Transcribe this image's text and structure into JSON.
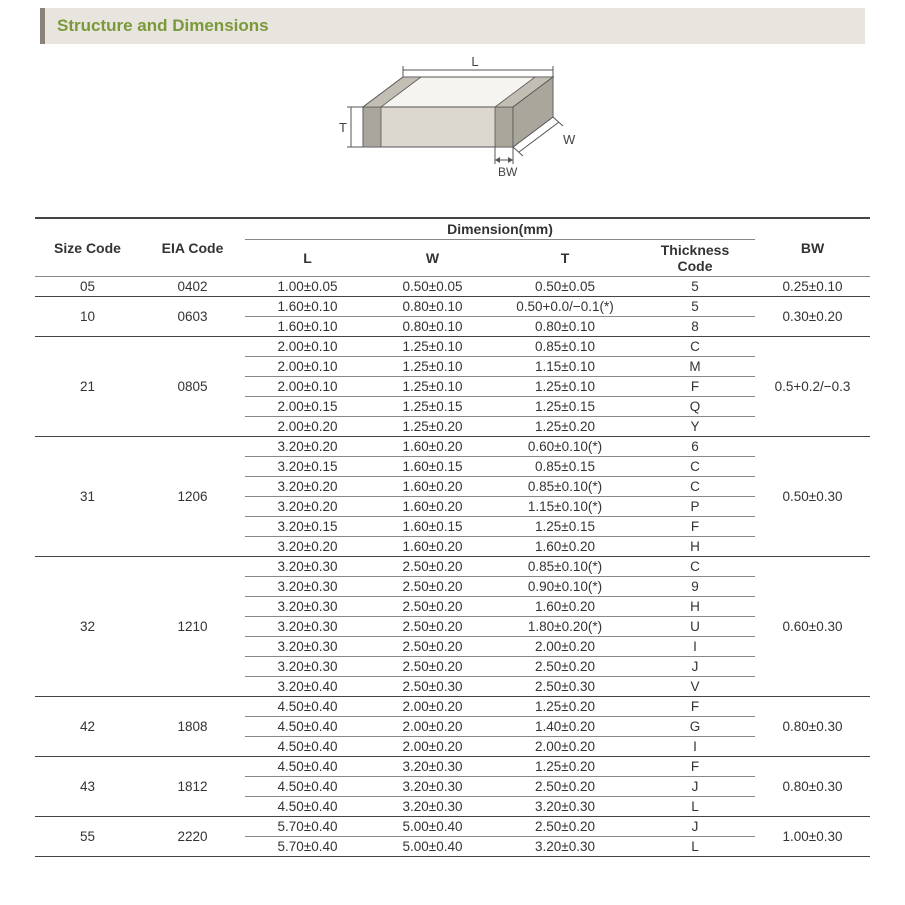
{
  "title": "Structure and Dimensions",
  "diagram": {
    "labels": {
      "L": "L",
      "W": "W",
      "T": "T",
      "BW": "BW"
    },
    "stroke": "#555555",
    "fill_top": "#f6f4f0",
    "fill_side": "#dcd8d0",
    "fill_end": "#c2beb4",
    "fill_end_dark": "#aaa69c"
  },
  "table": {
    "header": {
      "size": "Size Code",
      "eia": "EIA Code",
      "dim": "Dimension(mm)",
      "L": "L",
      "W": "W",
      "T": "T",
      "thk": "Thickness  Code",
      "bw": "BW"
    },
    "groups": [
      {
        "size": "05",
        "eia": "0402",
        "bw": "0.25±0.10",
        "rows": [
          {
            "L": "1.00±0.05",
            "W": "0.50±0.05",
            "T": "0.50±0.05",
            "thk": "5"
          }
        ]
      },
      {
        "size": "10",
        "eia": "0603",
        "bw": "0.30±0.20",
        "rows": [
          {
            "L": "1.60±0.10",
            "W": "0.80±0.10",
            "T": "0.50+0.0/−0.1(*)",
            "thk": "5"
          },
          {
            "L": "1.60±0.10",
            "W": "0.80±0.10",
            "T": "0.80±0.10",
            "thk": "8"
          }
        ]
      },
      {
        "size": "21",
        "eia": "0805",
        "bw": "0.5+0.2/−0.3",
        "rows": [
          {
            "L": "2.00±0.10",
            "W": "1.25±0.10",
            "T": "0.85±0.10",
            "thk": "C"
          },
          {
            "L": "2.00±0.10",
            "W": "1.25±0.10",
            "T": "1.15±0.10",
            "thk": "M"
          },
          {
            "L": "2.00±0.10",
            "W": "1.25±0.10",
            "T": "1.25±0.10",
            "thk": "F"
          },
          {
            "L": "2.00±0.15",
            "W": "1.25±0.15",
            "T": "1.25±0.15",
            "thk": "Q"
          },
          {
            "L": "2.00±0.20",
            "W": "1.25±0.20",
            "T": "1.25±0.20",
            "thk": "Y"
          }
        ]
      },
      {
        "size": "31",
        "eia": "1206",
        "bw": "0.50±0.30",
        "rows": [
          {
            "L": "3.20±0.20",
            "W": "1.60±0.20",
            "T": "0.60±0.10(*)",
            "thk": "6"
          },
          {
            "L": "3.20±0.15",
            "W": "1.60±0.15",
            "T": "0.85±0.15",
            "thk": "C"
          },
          {
            "L": "3.20±0.20",
            "W": "1.60±0.20",
            "T": "0.85±0.10(*)",
            "thk": "C"
          },
          {
            "L": "3.20±0.20",
            "W": "1.60±0.20",
            "T": "1.15±0.10(*)",
            "thk": "P"
          },
          {
            "L": "3.20±0.15",
            "W": "1.60±0.15",
            "T": "1.25±0.15",
            "thk": "F"
          },
          {
            "L": "3.20±0.20",
            "W": "1.60±0.20",
            "T": "1.60±0.20",
            "thk": "H"
          }
        ]
      },
      {
        "size": "32",
        "eia": "1210",
        "bw": "0.60±0.30",
        "rows": [
          {
            "L": "3.20±0.30",
            "W": "2.50±0.20",
            "T": "0.85±0.10(*)",
            "thk": "C"
          },
          {
            "L": "3.20±0.30",
            "W": "2.50±0.20",
            "T": "0.90±0.10(*)",
            "thk": "9"
          },
          {
            "L": "3.20±0.30",
            "W": "2.50±0.20",
            "T": "1.60±0.20",
            "thk": "H"
          },
          {
            "L": "3.20±0.30",
            "W": "2.50±0.20",
            "T": "1.80±0.20(*)",
            "thk": "U"
          },
          {
            "L": "3.20±0.30",
            "W": "2.50±0.20",
            "T": "2.00±0.20",
            "thk": "I"
          },
          {
            "L": "3.20±0.30",
            "W": "2.50±0.20",
            "T": "2.50±0.20",
            "thk": "J"
          },
          {
            "L": "3.20±0.40",
            "W": "2.50±0.30",
            "T": "2.50±0.30",
            "thk": "V"
          }
        ]
      },
      {
        "size": "42",
        "eia": "1808",
        "bw": "0.80±0.30",
        "rows": [
          {
            "L": "4.50±0.40",
            "W": "2.00±0.20",
            "T": "1.25±0.20",
            "thk": "F"
          },
          {
            "L": "4.50±0.40",
            "W": "2.00±0.20",
            "T": "1.40±0.20",
            "thk": "G"
          },
          {
            "L": "4.50±0.40",
            "W": "2.00±0.20",
            "T": "2.00±0.20",
            "thk": "I"
          }
        ]
      },
      {
        "size": "43",
        "eia": "1812",
        "bw": "0.80±0.30",
        "rows": [
          {
            "L": "4.50±0.40",
            "W": "3.20±0.30",
            "T": "1.25±0.20",
            "thk": "F"
          },
          {
            "L": "4.50±0.40",
            "W": "3.20±0.30",
            "T": "2.50±0.20",
            "thk": "J"
          },
          {
            "L": "4.50±0.40",
            "W": "3.20±0.30",
            "T": "3.20±0.30",
            "thk": "L"
          }
        ]
      },
      {
        "size": "55",
        "eia": "2220",
        "bw": "1.00±0.30",
        "rows": [
          {
            "L": "5.70±0.40",
            "W": "5.00±0.40",
            "T": "2.50±0.20",
            "thk": "J"
          },
          {
            "L": "5.70±0.40",
            "W": "5.00±0.40",
            "T": "3.20±0.30",
            "thk": "L"
          }
        ]
      }
    ]
  }
}
